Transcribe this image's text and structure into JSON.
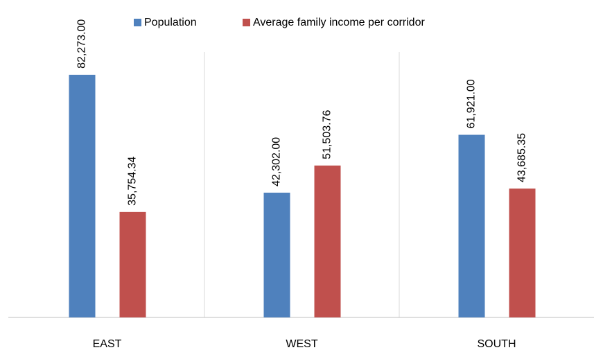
{
  "chart_data": {
    "type": "bar",
    "categories": [
      "EAST",
      "WEST",
      "SOUTH"
    ],
    "series": [
      {
        "name": "Population",
        "color": "#4f81bd",
        "values": [
          82273,
          42302,
          61921
        ],
        "value_labels": [
          "82,273.00",
          "42,302.00",
          "61,921.00"
        ]
      },
      {
        "name": "Average family income per corridor",
        "color": "#c0504d",
        "values": [
          35754.34,
          51503.76,
          43685.35
        ],
        "value_labels": [
          "35,754.34",
          "51,503.76",
          "43,685.35"
        ]
      }
    ],
    "ylim": [
      0,
      90000
    ],
    "legend": "top"
  }
}
